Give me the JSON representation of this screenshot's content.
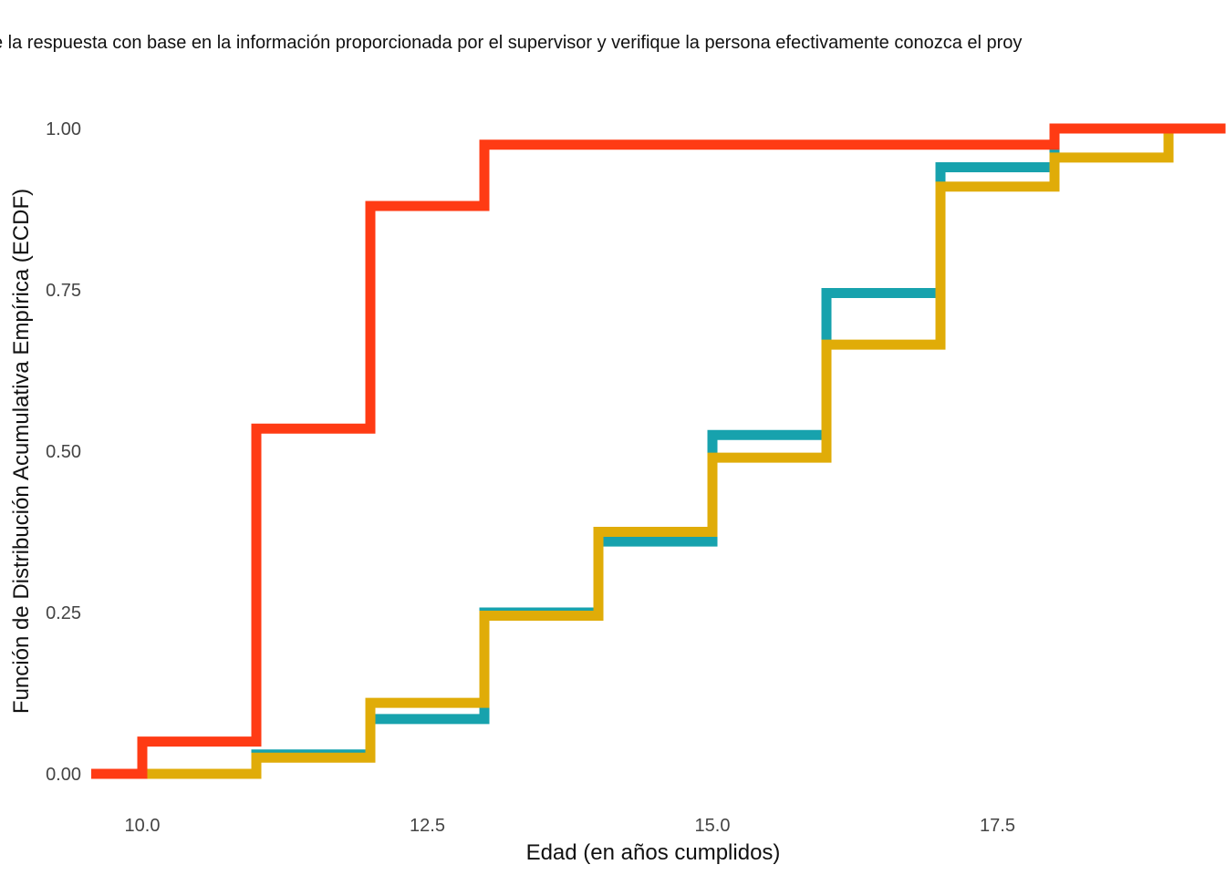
{
  "subtitle": "e la respuesta con base en la información proporcionada por el supervisor y verifique la persona efectivamente conozca el proy",
  "chart_data": {
    "type": "line",
    "step": true,
    "xlabel": "Edad (en años cumplidos)",
    "ylabel": "Función de Distribución Acumulativa Empírica (ECDF)",
    "xlim": [
      9.5,
      19.5
    ],
    "ylim": [
      0,
      1
    ],
    "x_ticks": [
      "10.0",
      "12.5",
      "15.0",
      "17.5"
    ],
    "y_ticks": [
      "0.00",
      "0.25",
      "0.50",
      "0.75",
      "1.00"
    ],
    "grid": false,
    "legend": "none",
    "series": [
      {
        "color": "#17a2ad",
        "steps": [
          [
            9.6,
            0.0
          ],
          [
            11.0,
            0.03
          ],
          [
            12.0,
            0.085
          ],
          [
            13.0,
            0.25
          ],
          [
            14.0,
            0.36
          ],
          [
            15.0,
            0.525
          ],
          [
            16.0,
            0.745
          ],
          [
            17.0,
            0.94
          ],
          [
            18.0,
            1.0
          ],
          [
            19.5,
            1.0
          ]
        ]
      },
      {
        "color": "#e0ac08",
        "steps": [
          [
            9.6,
            0.0
          ],
          [
            11.0,
            0.025
          ],
          [
            12.0,
            0.11
          ],
          [
            13.0,
            0.245
          ],
          [
            14.0,
            0.375
          ],
          [
            15.0,
            0.49
          ],
          [
            16.0,
            0.665
          ],
          [
            17.0,
            0.91
          ],
          [
            18.0,
            0.955
          ],
          [
            19.0,
            1.0
          ],
          [
            19.5,
            1.0
          ]
        ]
      },
      {
        "color": "#ff3b14",
        "steps": [
          [
            9.5,
            0.0
          ],
          [
            10.0,
            0.05
          ],
          [
            11.0,
            0.535
          ],
          [
            12.0,
            0.88
          ],
          [
            13.0,
            0.975
          ],
          [
            18.0,
            1.0
          ],
          [
            19.5,
            1.0
          ]
        ]
      }
    ]
  }
}
